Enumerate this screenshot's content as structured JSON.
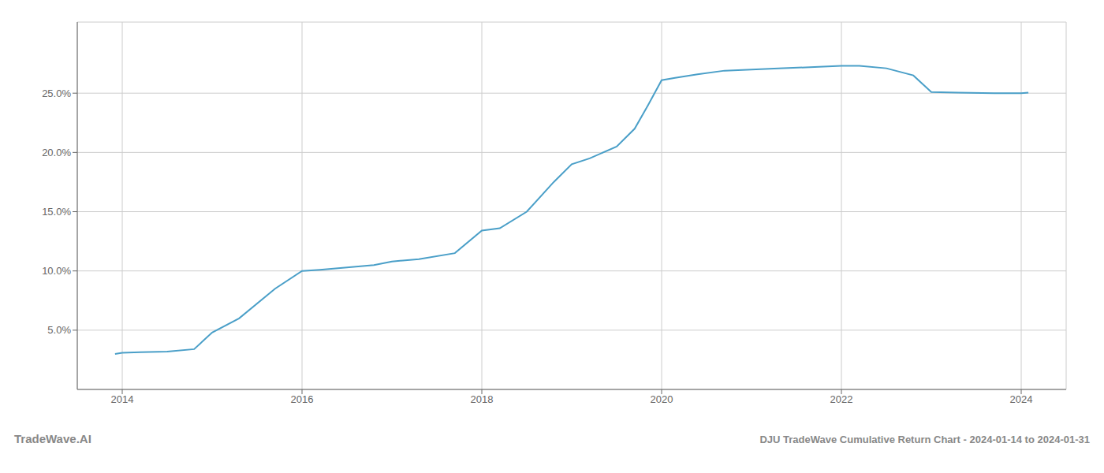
{
  "chart_data": {
    "type": "line",
    "title": "DJU TradeWave Cumulative Return Chart - 2024-01-14 to 2024-01-31",
    "annotations": [
      "TradeWave.AI"
    ],
    "x": [
      2013.92,
      2014.0,
      2014.2,
      2014.5,
      2014.8,
      2015.0,
      2015.3,
      2015.7,
      2016.0,
      2016.2,
      2016.5,
      2016.8,
      2017.0,
      2017.3,
      2017.7,
      2018.0,
      2018.2,
      2018.5,
      2018.8,
      2019.0,
      2019.2,
      2019.5,
      2019.7,
      2019.85,
      2020.0,
      2020.15,
      2020.4,
      2020.7,
      2021.0,
      2021.3,
      2021.7,
      2022.0,
      2022.2,
      2022.5,
      2022.8,
      2023.0,
      2023.3,
      2023.7,
      2024.0,
      2024.08
    ],
    "values": [
      3.0,
      3.1,
      3.15,
      3.2,
      3.4,
      4.8,
      6.0,
      8.5,
      10.0,
      10.1,
      10.3,
      10.5,
      10.8,
      11.0,
      11.5,
      13.4,
      13.6,
      15.0,
      17.5,
      19.0,
      19.5,
      20.5,
      22.0,
      24.0,
      26.1,
      26.3,
      26.6,
      26.9,
      27.0,
      27.1,
      27.2,
      27.3,
      27.3,
      27.1,
      26.5,
      25.1,
      25.05,
      25.0,
      25.0,
      25.05
    ],
    "color": "#4a9fc8",
    "xlim": [
      2013.5,
      2024.5
    ],
    "ylim": [
      0,
      31
    ],
    "xticks": [
      2014,
      2016,
      2018,
      2020,
      2022,
      2024
    ],
    "yticks": [
      {
        "value": 5.0,
        "label": "5.0%"
      },
      {
        "value": 10.0,
        "label": "10.0%"
      },
      {
        "value": 15.0,
        "label": "15.0%"
      },
      {
        "value": 20.0,
        "label": "20.0%"
      },
      {
        "value": 25.0,
        "label": "25.0%"
      }
    ],
    "grid": true
  }
}
